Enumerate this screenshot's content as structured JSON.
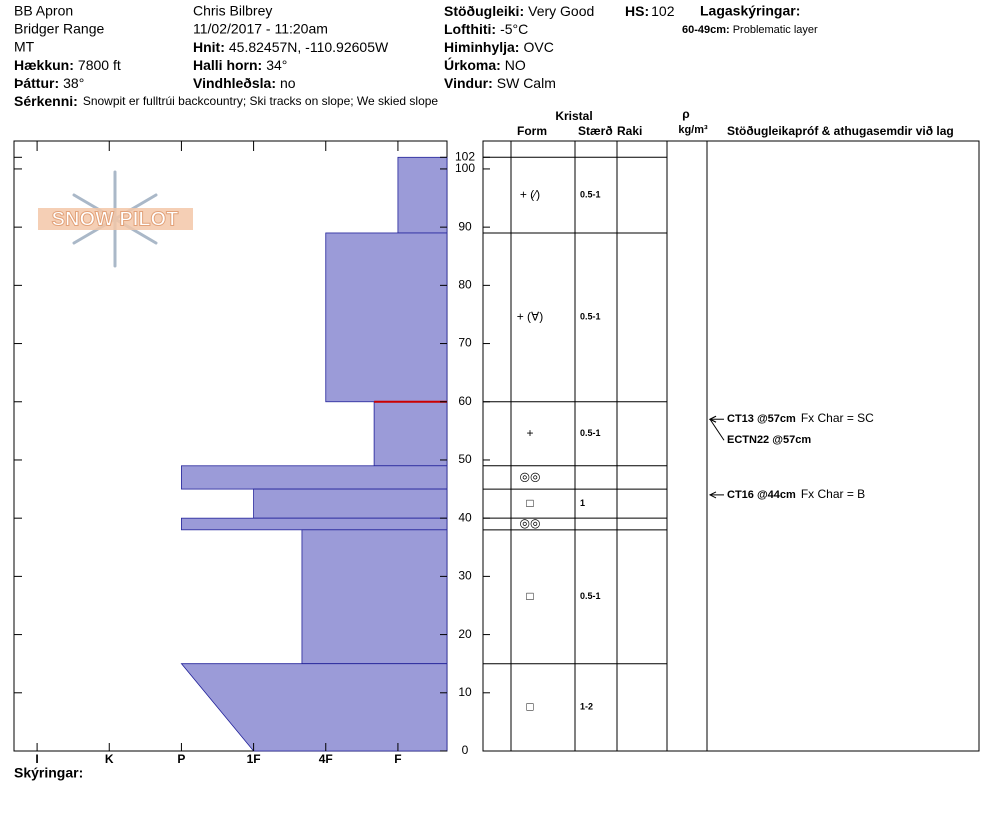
{
  "header": {
    "site": "BB Apron",
    "range": "Bridger Range",
    "state": "MT",
    "elevation": {
      "label": "Hækkun:",
      "value": "7800 ft"
    },
    "aspect": {
      "label": "Þáttur:",
      "value": "38°"
    },
    "observer": "Chris Bilbrey",
    "datetime": "11/02/2017 - 11:20am",
    "coords": {
      "label": "Hnit:",
      "value": "45.82457N, -110.92605W"
    },
    "slope": {
      "label": "Halli horn:",
      "value": "34°"
    },
    "wind_loading": {
      "label": "Vindhleðsla:",
      "value": "no"
    },
    "stability": {
      "label": "Stöðugleiki:",
      "value": "Very Good"
    },
    "air_temp": {
      "label": "Lofthiti:",
      "value": "-5°C"
    },
    "sky": {
      "label": "Himinhylja:",
      "value": "OVC"
    },
    "precip": {
      "label": "Úrkoma:",
      "value": "NO"
    },
    "wind": {
      "label": "Vindur:",
      "value": "SW Calm"
    },
    "hs": {
      "label": "HS:",
      "value": 102
    },
    "legend_title": "Lagaskýringar:",
    "legend_item": {
      "label": "60-49cm:",
      "value": "Problematic layer"
    },
    "features": {
      "label": "Sérkenni:",
      "value": "Snowpit er fulltrúi backcountry; Ski tracks on slope; We skied slope"
    }
  },
  "logo": "SNOW PILOT",
  "footer": "Skýringar:",
  "columns": {
    "crystal": "Kristal",
    "form": "Form",
    "size": "Stærð",
    "moisture": "Raki",
    "density_symbol": "ρ",
    "density_unit": "kg/m³",
    "comments": "Stöðugleikapróf & athugasemdir við lag"
  },
  "chart_data": {
    "type": "snowpit",
    "ylim": [
      0,
      104.8
    ],
    "yticks": [
      0,
      10,
      20,
      30,
      40,
      50,
      60,
      70,
      80,
      90,
      100,
      102
    ],
    "xlim": [
      6.32,
      0.32
    ],
    "xticks": [
      {
        "value": 6,
        "label": "I"
      },
      {
        "value": 5,
        "label": "K"
      },
      {
        "value": 4,
        "label": "P"
      },
      {
        "value": 3,
        "label": "1F"
      },
      {
        "value": 2,
        "label": "4F"
      },
      {
        "value": 1,
        "label": "F"
      }
    ],
    "color": "#9b9bd8",
    "problem_line": 60,
    "problem_color": "#cc0000",
    "layers": [
      {
        "top": 102,
        "bottom": 89,
        "hardness": 1,
        "form": "+ (⁄)",
        "size": "0.5-1"
      },
      {
        "top": 89,
        "bottom": 60,
        "hardness": 2,
        "form": "+ (∀)",
        "size": "0.5-1"
      },
      {
        "top": 60,
        "bottom": 49,
        "hardness": 1.33,
        "form": "+",
        "size": "0.5-1"
      },
      {
        "top": 49,
        "bottom": 45,
        "hardness": 4,
        "form": "◎◎"
      },
      {
        "top": 45,
        "bottom": 40,
        "hardness": 3,
        "form": "□",
        "size": "1"
      },
      {
        "top": 40,
        "bottom": 38,
        "hardness": 4,
        "form": "◎◎"
      },
      {
        "top": 38,
        "bottom": 15,
        "hardness": 2.33,
        "form": "□",
        "size": "0.5-1"
      },
      {
        "top": 15,
        "bottom": 0,
        "hardness": 4,
        "hardness_bottom": 3,
        "form": "□",
        "size": "1-2"
      }
    ],
    "tests": [
      {
        "name": "CT13 @57cm",
        "depth": 57,
        "note": "Fx Char = SC"
      },
      {
        "name": "ECTN22 @57cm",
        "depth": 57
      },
      {
        "name": "CT16 @44cm",
        "depth": 44,
        "note": "Fx Char = B"
      }
    ]
  }
}
